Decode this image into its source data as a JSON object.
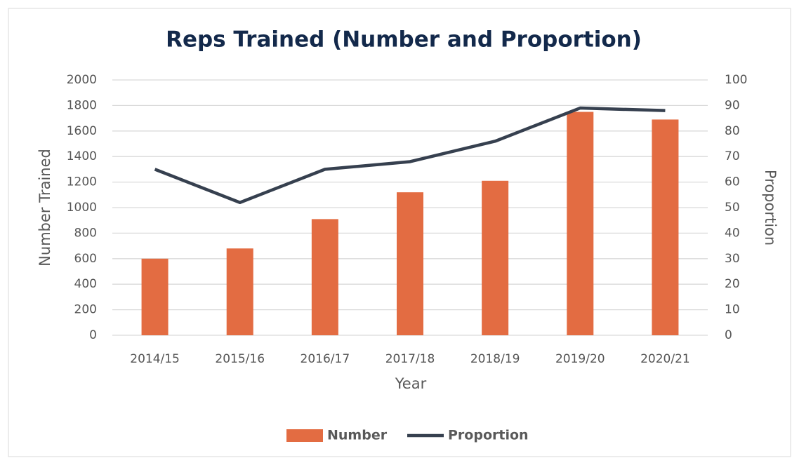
{
  "chart_data": {
    "type": "bar_line",
    "title": "Reps Trained (Number and Proportion)",
    "xlabel": "Year",
    "ylabel": "Number Trained",
    "y2label": "Proportion",
    "categories": [
      "2014/15",
      "2015/16",
      "2016/17",
      "2017/18",
      "2018/19",
      "2019/20",
      "2020/21"
    ],
    "series": [
      {
        "name": "Number",
        "type": "bar",
        "color": "#e36c42",
        "values": [
          600,
          680,
          910,
          1120,
          1210,
          1750,
          1690
        ]
      },
      {
        "name": "Proportion",
        "type": "line",
        "axis": "y2",
        "color": "#36404f",
        "values": [
          65,
          52,
          65,
          68,
          76,
          89,
          88
        ]
      }
    ],
    "ylim": [
      0,
      2000
    ],
    "yticks": [
      0,
      200,
      400,
      600,
      800,
      1000,
      1200,
      1400,
      1600,
      1800,
      2000
    ],
    "y2lim": [
      0,
      100
    ],
    "y2ticks": [
      0,
      10,
      20,
      30,
      40,
      50,
      60,
      70,
      80,
      90,
      100
    ],
    "grid": true,
    "legend": "bottom"
  }
}
